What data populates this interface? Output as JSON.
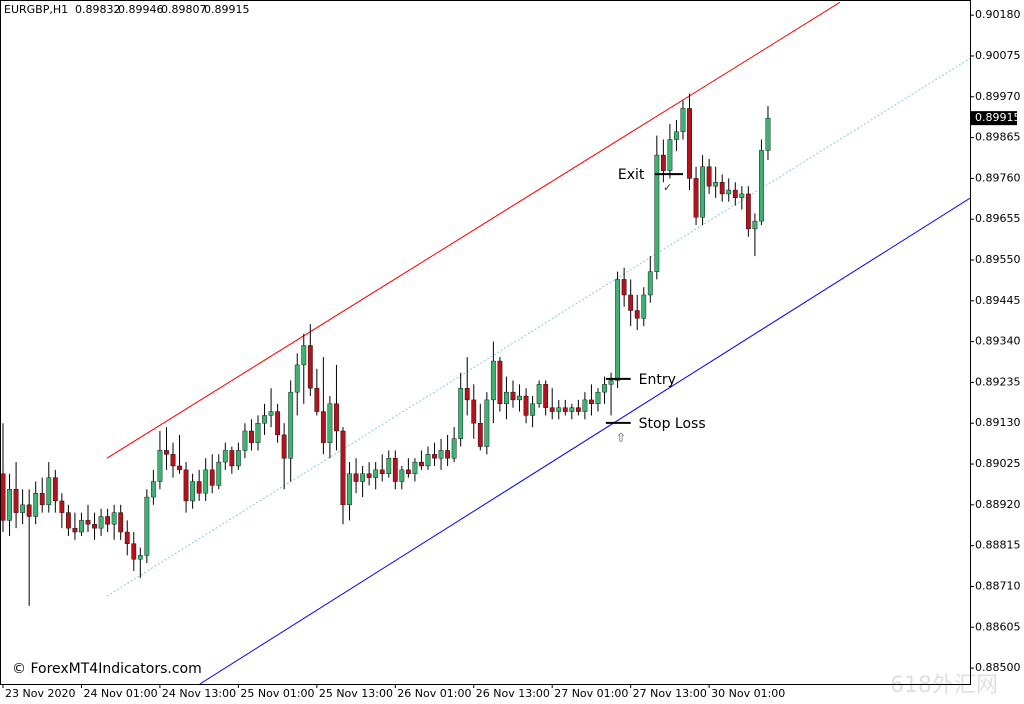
{
  "chart_data": {
    "type": "candlestick",
    "title": "EURGBP,H1",
    "copyright": "© ForexMT4Indicators.com",
    "watermark": "618外汇网",
    "up_color": "#3cb371",
    "down_color": "#b5121b",
    "wick_color": "#000000",
    "xlim": [
      -0.46,
      147.9
    ],
    "ylim": [
      0.88459,
      0.90219
    ],
    "yticks": [
      {
        "value": 0.9018,
        "label": "0.90180"
      },
      0.90075,
      {
        "value": 0.8997,
        "label": "0.89970"
      },
      0.89865,
      {
        "value": 0.8976,
        "label": "0.89760"
      },
      0.89655,
      {
        "value": 0.8955,
        "label": "0.89550"
      },
      0.89445,
      {
        "value": 0.8934,
        "label": "0.89340"
      },
      0.89235,
      {
        "value": 0.8913,
        "label": "0.89130"
      },
      0.89025,
      {
        "value": 0.8892,
        "label": "0.88920"
      },
      0.88815,
      {
        "value": 0.8871,
        "label": "0.88710"
      },
      0.88605,
      {
        "value": 0.885,
        "label": "0.88500"
      }
    ],
    "categories": [
      "23 Nov 2020",
      null,
      null,
      null,
      null,
      null,
      null,
      null,
      null,
      null,
      null,
      null,
      "24 Nov 01:00",
      null,
      null,
      null,
      null,
      null,
      null,
      null,
      null,
      null,
      null,
      null,
      "24 Nov 13:00",
      null,
      null,
      null,
      null,
      null,
      null,
      null,
      null,
      null,
      null,
      null,
      "25 Nov 01:00",
      null,
      null,
      null,
      null,
      null,
      null,
      null,
      null,
      null,
      null,
      null,
      "25 Nov 13:00",
      null,
      null,
      null,
      null,
      null,
      null,
      null,
      null,
      null,
      null,
      null,
      "26 Nov 01:00",
      null,
      null,
      null,
      null,
      null,
      null,
      null,
      null,
      null,
      null,
      null,
      "26 Nov 13:00",
      null,
      null,
      null,
      null,
      null,
      null,
      null,
      null,
      null,
      null,
      null,
      "27 Nov 01:00",
      null,
      null,
      null,
      null,
      null,
      null,
      null,
      null,
      null,
      null,
      null,
      "27 Nov 13:00",
      null,
      null,
      null,
      null,
      null,
      null,
      null,
      null,
      null,
      null,
      null,
      "30 Nov 01:00",
      null,
      null,
      null,
      null,
      null,
      null,
      null,
      null,
      null
    ],
    "ohlc": [
      [
        0.89,
        0.8913,
        0.8885,
        0.8888
      ],
      [
        0.8888,
        0.89,
        0.8884,
        0.8896
      ],
      [
        0.8896,
        0.8903,
        0.8886,
        0.889
      ],
      [
        0.889,
        0.8896,
        0.8887,
        0.8892
      ],
      [
        0.8892,
        0.8896,
        0.8866,
        0.8889
      ],
      [
        0.8889,
        0.8898,
        0.8887,
        0.8895
      ],
      [
        0.8895,
        0.8899,
        0.889,
        0.8892
      ],
      [
        0.8892,
        0.8903,
        0.889,
        0.8899
      ],
      [
        0.8899,
        0.8901,
        0.889,
        0.8893
      ],
      [
        0.8893,
        0.8895,
        0.8886,
        0.889
      ],
      [
        0.889,
        0.8892,
        0.8884,
        0.8886
      ],
      [
        0.8886,
        0.889,
        0.8883,
        0.8885
      ],
      [
        0.8885,
        0.889,
        0.8884,
        0.8888
      ],
      [
        0.8888,
        0.8892,
        0.8885,
        0.8887
      ],
      [
        0.8887,
        0.889,
        0.8883,
        0.8886
      ],
      [
        0.8886,
        0.8891,
        0.8884,
        0.8889
      ],
      [
        0.8889,
        0.8891,
        0.8885,
        0.8887
      ],
      [
        0.8887,
        0.8892,
        0.8883,
        0.889
      ],
      [
        0.889,
        0.8892,
        0.8883,
        0.8885
      ],
      [
        0.8885,
        0.8888,
        0.8879,
        0.8882
      ],
      [
        0.8882,
        0.8885,
        0.8875,
        0.8878
      ],
      [
        0.8878,
        0.8881,
        0.88732,
        0.8879
      ],
      [
        0.8879,
        0.8896,
        0.8877,
        0.8894
      ],
      [
        0.8894,
        0.8901,
        0.8892,
        0.8898
      ],
      [
        0.8898,
        0.8911,
        0.8896,
        0.8906
      ],
      [
        0.8906,
        0.8912,
        0.8901,
        0.8905
      ],
      [
        0.8905,
        0.8908,
        0.8899,
        0.8902
      ],
      [
        0.8902,
        0.891,
        0.89,
        0.8901
      ],
      [
        0.8901,
        0.8903,
        0.889,
        0.8893
      ],
      [
        0.8893,
        0.89,
        0.8891,
        0.8898
      ],
      [
        0.8898,
        0.8901,
        0.8893,
        0.8895
      ],
      [
        0.8895,
        0.8904,
        0.8893,
        0.8901
      ],
      [
        0.8901,
        0.8905,
        0.8895,
        0.8897
      ],
      [
        0.8897,
        0.8905,
        0.8896,
        0.8903
      ],
      [
        0.8903,
        0.8908,
        0.8901,
        0.8906
      ],
      [
        0.8906,
        0.8907,
        0.89,
        0.8902
      ],
      [
        0.8902,
        0.8908,
        0.8901,
        0.8906
      ],
      [
        0.8906,
        0.8913,
        0.8904,
        0.8911
      ],
      [
        0.8911,
        0.8914,
        0.8906,
        0.8908
      ],
      [
        0.8908,
        0.8915,
        0.8906,
        0.8913
      ],
      [
        0.8913,
        0.8918,
        0.891,
        0.8915
      ],
      [
        0.8915,
        0.8922,
        0.8912,
        0.8916
      ],
      [
        0.8916,
        0.8918,
        0.8908,
        0.891
      ],
      [
        0.891,
        0.8913,
        0.8896,
        0.8904
      ],
      [
        0.8904,
        0.8924,
        0.8898,
        0.8921
      ],
      [
        0.8921,
        0.8931,
        0.8915,
        0.8928
      ],
      [
        0.8928,
        0.8936,
        0.8918,
        0.8933
      ],
      [
        0.8933,
        0.89385,
        0.892,
        0.8922
      ],
      [
        0.8922,
        0.8927,
        0.8915,
        0.8916
      ],
      [
        0.8916,
        0.893,
        0.8905,
        0.8908
      ],
      [
        0.8908,
        0.892,
        0.8904,
        0.8918
      ],
      [
        0.8918,
        0.8928,
        0.8906,
        0.8911
      ],
      [
        0.8911,
        0.8912,
        0.8887,
        0.8892
      ],
      [
        0.8892,
        0.8903,
        0.8888,
        0.89
      ],
      [
        0.89,
        0.8904,
        0.8895,
        0.8898
      ],
      [
        0.8898,
        0.8902,
        0.8894,
        0.89
      ],
      [
        0.89,
        0.8903,
        0.8897,
        0.8899
      ],
      [
        0.8899,
        0.8903,
        0.8896,
        0.8901
      ],
      [
        0.8901,
        0.8905,
        0.8898,
        0.89
      ],
      [
        0.89,
        0.8906,
        0.8899,
        0.8904
      ],
      [
        0.8904,
        0.8906,
        0.8896,
        0.8898
      ],
      [
        0.8898,
        0.8902,
        0.8896,
        0.8901
      ],
      [
        0.8901,
        0.8904,
        0.8899,
        0.89
      ],
      [
        0.89,
        0.8904,
        0.8898,
        0.8903
      ],
      [
        0.8903,
        0.8906,
        0.8901,
        0.8902
      ],
      [
        0.8902,
        0.8907,
        0.8901,
        0.8905
      ],
      [
        0.8905,
        0.8908,
        0.8902,
        0.8904
      ],
      [
        0.8904,
        0.8909,
        0.8901,
        0.8906
      ],
      [
        0.8906,
        0.891,
        0.8902,
        0.8904
      ],
      [
        0.8904,
        0.8912,
        0.8903,
        0.8909
      ],
      [
        0.8909,
        0.8926,
        0.8907,
        0.8922
      ],
      [
        0.8922,
        0.893,
        0.8915,
        0.8919
      ],
      [
        0.8919,
        0.8923,
        0.8909,
        0.8913
      ],
      [
        0.8913,
        0.8918,
        0.8906,
        0.8907
      ],
      [
        0.8907,
        0.8921,
        0.8905,
        0.8919
      ],
      [
        0.8919,
        0.8934,
        0.8913,
        0.8929
      ],
      [
        0.8929,
        0.893,
        0.8916,
        0.8918
      ],
      [
        0.8918,
        0.8925,
        0.8914,
        0.8921
      ],
      [
        0.8921,
        0.8924,
        0.8917,
        0.8919
      ],
      [
        0.8919,
        0.8923,
        0.8916,
        0.892
      ],
      [
        0.892,
        0.8922,
        0.8913,
        0.8915
      ],
      [
        0.8915,
        0.892,
        0.8912,
        0.8918
      ],
      [
        0.8918,
        0.8924,
        0.8917,
        0.8923
      ],
      [
        0.8923,
        0.8924,
        0.8915,
        0.8917
      ],
      [
        0.8917,
        0.8922,
        0.8914,
        0.8916
      ],
      [
        0.8916,
        0.8919,
        0.8914,
        0.8917
      ],
      [
        0.8917,
        0.8919,
        0.8915,
        0.8916
      ],
      [
        0.8916,
        0.8918,
        0.8914,
        0.8917
      ],
      [
        0.8917,
        0.8919,
        0.8915,
        0.8916
      ],
      [
        0.8916,
        0.8921,
        0.8914,
        0.8919
      ],
      [
        0.8919,
        0.8923,
        0.8915,
        0.8918
      ],
      [
        0.8918,
        0.8922,
        0.8916,
        0.8921
      ],
      [
        0.8921,
        0.8925,
        0.8918,
        0.8923
      ],
      [
        0.8923,
        0.8926,
        0.8915,
        0.8924
      ],
      [
        0.8924,
        0.8952,
        0.8922,
        0.895
      ],
      [
        0.895,
        0.8953,
        0.8943,
        0.8946
      ],
      [
        0.8946,
        0.895,
        0.8938,
        0.8942
      ],
      [
        0.8942,
        0.8946,
        0.8937,
        0.894
      ],
      [
        0.894,
        0.8948,
        0.8938,
        0.8946
      ],
      [
        0.8946,
        0.8956,
        0.8944,
        0.8952
      ],
      [
        0.8952,
        0.8987,
        0.895,
        0.8982
      ],
      [
        0.8982,
        0.8986,
        0.8975,
        0.8978
      ],
      [
        0.8978,
        0.899,
        0.8976,
        0.8986
      ],
      [
        0.8986,
        0.8991,
        0.8983,
        0.8988
      ],
      [
        0.8988,
        0.8996,
        0.8986,
        0.8994
      ],
      [
        0.8994,
        0.89978,
        0.8973,
        0.8976
      ],
      [
        0.8976,
        0.8979,
        0.8964,
        0.8966
      ],
      [
        0.8966,
        0.8982,
        0.8964,
        0.8979
      ],
      [
        0.8979,
        0.8981,
        0.8972,
        0.8974
      ],
      [
        0.8974,
        0.8979,
        0.8971,
        0.8975
      ],
      [
        0.8975,
        0.8977,
        0.897,
        0.8972
      ],
      [
        0.8972,
        0.8976,
        0.897,
        0.8973
      ],
      [
        0.8973,
        0.8975,
        0.8969,
        0.8971
      ],
      [
        0.8971,
        0.8974,
        0.8968,
        0.8972
      ],
      [
        0.8972,
        0.8974,
        0.8961,
        0.8963
      ],
      [
        0.8963,
        0.8967,
        0.8956,
        0.8965
      ],
      [
        0.8965,
        0.8986,
        0.8964,
        0.89832
      ],
      [
        0.89832,
        0.89946,
        0.89807,
        0.89915
      ]
    ],
    "trendlines": [
      {
        "color": "#ff0000",
        "dashed": false,
        "x": [
          15.9,
          128.0
        ],
        "y": [
          0.8904,
          0.90213
        ]
      },
      {
        "color": "#87cbe0",
        "dashed": true,
        "x": [
          15.9,
          147.9
        ],
        "y": [
          0.88685,
          0.90069
        ]
      },
      {
        "color": "#0000ff",
        "dashed": false,
        "x": [
          30.1,
          147.9
        ],
        "y": [
          0.88459,
          0.89709
        ]
      }
    ],
    "levels": [
      {
        "label": "Exit",
        "price": 0.89771,
        "x": [
          99.7,
          104.0
        ],
        "label_side": "left"
      },
      {
        "label": "Entry",
        "price": 0.89244,
        "x": [
          92.2,
          96.0
        ],
        "label_side": "right"
      },
      {
        "label": "Stop Loss",
        "price": 0.89131,
        "x": [
          92.2,
          96.0
        ],
        "label_side": "right"
      }
    ]
  }
}
